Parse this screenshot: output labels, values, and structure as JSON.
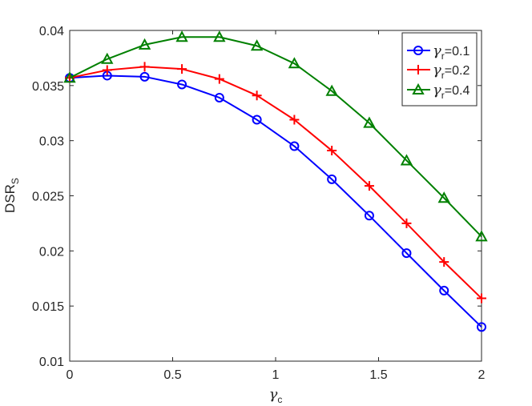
{
  "chart_data": {
    "type": "line",
    "title": "",
    "xlabel": "γc",
    "ylabel": "DSRS",
    "xlabel_parts": {
      "main": "γ",
      "sub": "c"
    },
    "ylabel_parts": {
      "main": "DSR",
      "sub": "S"
    },
    "xlim": [
      0,
      2
    ],
    "ylim": [
      0.01,
      0.04
    ],
    "xticks": [
      0,
      0.5,
      1,
      1.5,
      2
    ],
    "xtick_labels": [
      "0",
      "0.5",
      "1",
      "1.5",
      "2"
    ],
    "yticks": [
      0.01,
      0.015,
      0.02,
      0.025,
      0.03,
      0.035,
      0.04
    ],
    "ytick_labels": [
      "0.01",
      "0.015",
      "0.02",
      "0.025",
      "0.03",
      "0.035",
      "0.04"
    ],
    "grid": false,
    "legend": "top-right",
    "x": [
      0,
      0.182,
      0.364,
      0.545,
      0.727,
      0.909,
      1.091,
      1.273,
      1.455,
      1.636,
      1.818,
      2
    ],
    "series": [
      {
        "name": "γr=0.1",
        "label_main": "γ",
        "label_sub": "r",
        "label_value": "=0.1",
        "color": "#0000ff",
        "marker": "circle",
        "values": [
          0.0357,
          0.0359,
          0.0358,
          0.0351,
          0.0339,
          0.0319,
          0.0295,
          0.0265,
          0.0232,
          0.0198,
          0.0164,
          0.0131
        ]
      },
      {
        "name": "γr=0.2",
        "label_main": "γ",
        "label_sub": "r",
        "label_value": "=0.2",
        "color": "#ff0000",
        "marker": "plus",
        "values": [
          0.0357,
          0.0364,
          0.0367,
          0.0365,
          0.0356,
          0.0341,
          0.0319,
          0.0291,
          0.0259,
          0.0225,
          0.019,
          0.0157
        ]
      },
      {
        "name": "γr=0.4",
        "label_main": "γ",
        "label_sub": "r",
        "label_value": "=0.4",
        "color": "#008000",
        "marker": "triangle",
        "values": [
          0.0357,
          0.0374,
          0.0387,
          0.0394,
          0.0394,
          0.0386,
          0.037,
          0.0345,
          0.0316,
          0.0282,
          0.0248,
          0.0213
        ]
      }
    ]
  }
}
